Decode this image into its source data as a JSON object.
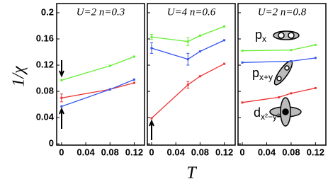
{
  "chart_data": [
    {
      "type": "line",
      "title": "U=2 n=0.3",
      "ylabel": "1/χ",
      "xlim": [
        -0.008,
        0.137
      ],
      "ylim": [
        -0.002,
        0.214
      ],
      "xticks": [
        0,
        0.04,
        0.08,
        0.12
      ],
      "yticks": [
        0,
        0.04,
        0.08,
        0.12,
        0.16,
        0.2
      ],
      "series": [
        {
          "color": "#66ee33",
          "x": [
            0,
            0.08,
            0.12
          ],
          "values": [
            0.097,
            0.119,
            0.133
          ],
          "errors": [
            null,
            null,
            null
          ]
        },
        {
          "color": "#ee3333",
          "x": [
            0,
            0.08,
            0.12
          ],
          "values": [
            0.07,
            0.083,
            0.093
          ],
          "errors": [
            0.006,
            null,
            null
          ]
        },
        {
          "color": "#3355ee",
          "x": [
            0,
            0.08,
            0.12
          ],
          "values": [
            0.057,
            0.083,
            0.098
          ],
          "errors": [
            null,
            null,
            null
          ]
        }
      ]
    },
    {
      "type": "line",
      "title": "U=4 n=0.6",
      "xlabel": "T",
      "xlim": [
        -0.007,
        0.138
      ],
      "ylim": [
        -0.002,
        0.214
      ],
      "xticks": [
        0,
        0.04,
        0.08,
        0.12
      ],
      "series": [
        {
          "color": "#66ee33",
          "x": [
            0,
            0.06,
            0.08,
            0.12
          ],
          "values": [
            0.163,
            0.156,
            0.165,
            0.179
          ],
          "errors": [
            0.004,
            0.006,
            null,
            null
          ]
        },
        {
          "color": "#3355ee",
          "x": [
            0,
            0.06,
            0.08,
            0.12
          ],
          "values": [
            0.146,
            0.129,
            0.141,
            0.158
          ],
          "errors": [
            0.008,
            0.009,
            null,
            null
          ]
        },
        {
          "color": "#ee3333",
          "x": [
            0,
            0.06,
            0.08,
            0.12
          ],
          "values": [
            0.039,
            0.09,
            0.103,
            0.122
          ],
          "errors": [
            null,
            0.005,
            null,
            null
          ]
        }
      ]
    },
    {
      "type": "line",
      "title": "U=2 n=0.8",
      "xlim": [
        -0.007,
        0.137
      ],
      "ylim": [
        -0.002,
        0.214
      ],
      "xticks": [
        0,
        0.04,
        0.08,
        0.12
      ],
      "annotations": [
        {
          "text": "p",
          "sub": "x"
        },
        {
          "text": "p",
          "sub": "x+y"
        },
        {
          "text": "d",
          "sub": "x²−y²"
        }
      ],
      "series": [
        {
          "color": "#66ee33",
          "x": [
            0,
            0.08,
            0.12
          ],
          "values": [
            0.142,
            0.143,
            0.151
          ],
          "errors": [
            null,
            null,
            null
          ]
        },
        {
          "color": "#3355ee",
          "x": [
            0,
            0.08,
            0.12
          ],
          "values": [
            0.124,
            0.126,
            0.131
          ],
          "errors": [
            null,
            null,
            null
          ]
        },
        {
          "color": "#ee3333",
          "x": [
            0,
            0.06,
            0.08,
            0.12
          ],
          "values": [
            0.063,
            0.071,
            0.077,
            0.085
          ],
          "errors": [
            null,
            null,
            null,
            null
          ]
        }
      ]
    }
  ]
}
